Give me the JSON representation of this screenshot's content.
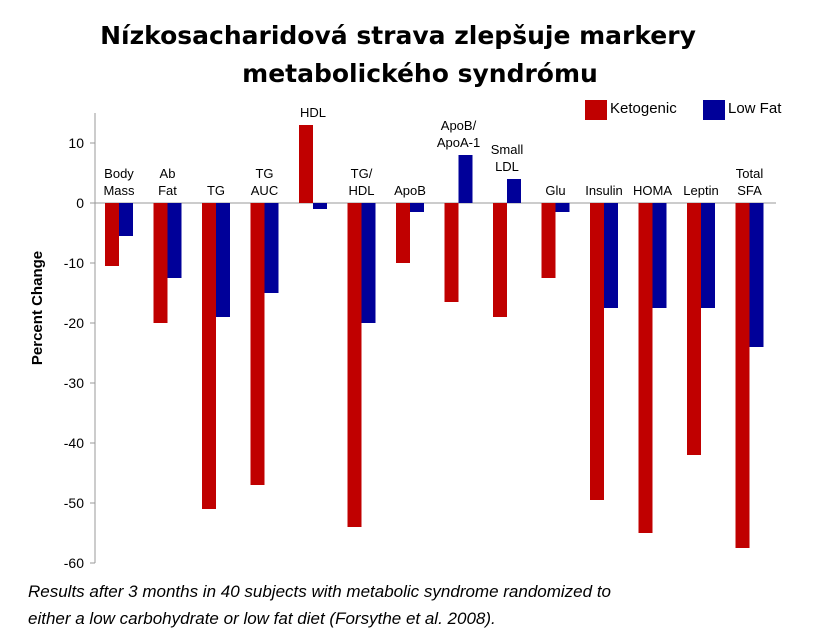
{
  "chart_data": {
    "type": "bar",
    "title": [
      "Nízkosacharidová strava zlepšuje markery",
      "metabolického syndrómu"
    ],
    "y_label": "Percent Change",
    "caption": [
      "Results after 3 months in 40 subjects with metabolic syndrome randomized to",
      "either a low carbohydrate or low fat diet (Forsythe et al. 2008)."
    ],
    "categories": [
      [
        "Body",
        "Mass"
      ],
      [
        "Ab",
        "Fat"
      ],
      [
        "TG"
      ],
      [
        "TG",
        "AUC"
      ],
      [
        "HDL"
      ],
      [
        "TG/",
        "HDL"
      ],
      [
        "ApoB"
      ],
      [
        "ApoB/",
        "ApoA-1"
      ],
      [
        "Small",
        "LDL"
      ],
      [
        "Glu"
      ],
      [
        "Insulin"
      ],
      [
        "HOMA"
      ],
      [
        "Leptin"
      ],
      [
        "Total",
        "SFA"
      ]
    ],
    "series": [
      {
        "name": "Ketogenic",
        "color": "#c00000",
        "values": [
          -10.5,
          -20,
          -51,
          -47,
          13,
          -54,
          -10,
          -16.5,
          -19,
          -12.5,
          -49.5,
          -55,
          -42,
          -57.5
        ]
      },
      {
        "name": "Low Fat",
        "color": "#000099",
        "values": [
          -5.5,
          -12.5,
          -19,
          -15,
          -1,
          -20,
          -1.5,
          8,
          4,
          -1.5,
          -17.5,
          -17.5,
          -17.5,
          -24
        ]
      }
    ],
    "ylim": [
      -60,
      15
    ],
    "yticks": [
      10,
      0,
      -10,
      -20,
      -30,
      -40,
      -50,
      -60
    ],
    "legend": "top-right"
  }
}
